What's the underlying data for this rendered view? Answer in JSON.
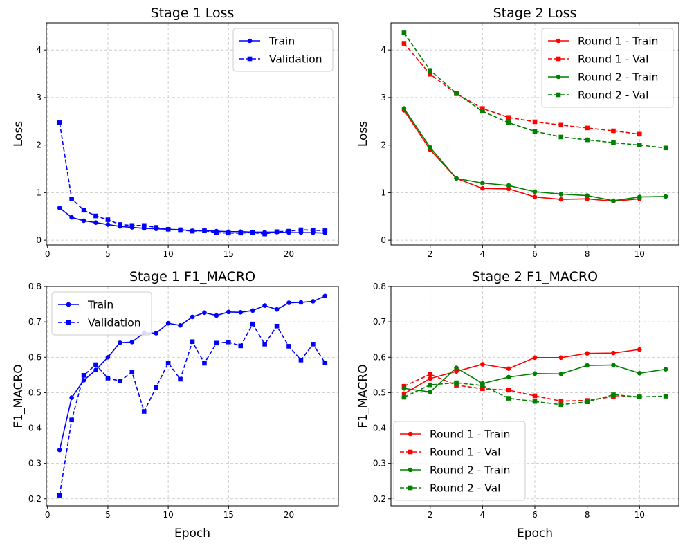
{
  "chart_data": [
    {
      "id": "stage1-loss",
      "type": "line",
      "title": "Stage 1 Loss",
      "xlabel": "",
      "ylabel": "Loss",
      "xlim": [
        -0.1,
        24.1
      ],
      "ylim": [
        -0.1,
        4.57
      ],
      "xticks": [
        0,
        5,
        10,
        15,
        20
      ],
      "yticks": [
        0,
        1,
        2,
        3,
        4
      ],
      "grid": true,
      "legend_position": "top-right",
      "series": [
        {
          "name": "Train",
          "color": "#0000ff",
          "dashed": false,
          "marker": "circle",
          "x": [
            1,
            2,
            3,
            4,
            5,
            6,
            7,
            8,
            9,
            10,
            11,
            12,
            13,
            14,
            15,
            16,
            17,
            18,
            19,
            20,
            21,
            22,
            23
          ],
          "y": [
            0.68,
            0.48,
            0.41,
            0.37,
            0.33,
            0.29,
            0.27,
            0.25,
            0.24,
            0.23,
            0.22,
            0.2,
            0.2,
            0.19,
            0.18,
            0.18,
            0.17,
            0.17,
            0.17,
            0.16,
            0.16,
            0.16,
            0.15
          ]
        },
        {
          "name": "Validation",
          "color": "#0000ff",
          "dashed": true,
          "marker": "square",
          "x": [
            1,
            2,
            3,
            4,
            5,
            6,
            7,
            8,
            9,
            10,
            11,
            12,
            13,
            14,
            15,
            16,
            17,
            18,
            19,
            20,
            21,
            22,
            23
          ],
          "y": [
            2.47,
            0.87,
            0.63,
            0.51,
            0.43,
            0.33,
            0.31,
            0.31,
            0.27,
            0.23,
            0.22,
            0.19,
            0.2,
            0.16,
            0.15,
            0.15,
            0.16,
            0.13,
            0.18,
            0.19,
            0.22,
            0.21,
            0.2
          ]
        }
      ]
    },
    {
      "id": "stage2-loss",
      "type": "line",
      "title": "Stage 2 Loss",
      "xlabel": "",
      "ylabel": "Loss",
      "xlim": [
        0.5,
        11.5
      ],
      "ylim": [
        -0.1,
        4.57
      ],
      "xticks": [
        2,
        4,
        6,
        8,
        10
      ],
      "yticks": [
        0,
        1,
        2,
        3,
        4
      ],
      "grid": true,
      "legend_position": "top-right",
      "series": [
        {
          "name": "Round 1 - Train",
          "color": "#ff0000",
          "dashed": false,
          "marker": "circle",
          "x": [
            1,
            2,
            3,
            4,
            5,
            6,
            7,
            8,
            9,
            10
          ],
          "y": [
            2.73,
            1.9,
            1.3,
            1.09,
            1.08,
            0.91,
            0.86,
            0.87,
            0.82,
            0.87
          ]
        },
        {
          "name": "Round 1 - Val",
          "color": "#ff0000",
          "dashed": true,
          "marker": "square",
          "x": [
            1,
            2,
            3,
            4,
            5,
            6,
            7,
            8,
            9,
            10
          ],
          "y": [
            4.14,
            3.49,
            3.08,
            2.77,
            2.58,
            2.49,
            2.42,
            2.36,
            2.3,
            2.23
          ]
        },
        {
          "name": "Round 2 - Train",
          "color": "#008000",
          "dashed": false,
          "marker": "circle",
          "x": [
            1,
            2,
            3,
            4,
            5,
            6,
            7,
            8,
            9,
            10,
            11
          ],
          "y": [
            2.77,
            1.95,
            1.3,
            1.2,
            1.15,
            1.02,
            0.97,
            0.94,
            0.83,
            0.91,
            0.92
          ]
        },
        {
          "name": "Round 2 - Val",
          "color": "#008000",
          "dashed": true,
          "marker": "square",
          "x": [
            1,
            2,
            3,
            4,
            5,
            6,
            7,
            8,
            9,
            10,
            11
          ],
          "y": [
            4.36,
            3.57,
            3.09,
            2.71,
            2.47,
            2.29,
            2.17,
            2.11,
            2.05,
            2.0,
            1.94
          ]
        }
      ]
    },
    {
      "id": "stage1-f1",
      "type": "line",
      "title": "Stage 1 F1_MACRO",
      "xlabel": "Epoch",
      "ylabel": "F1_MACRO",
      "xlim": [
        -0.1,
        24.1
      ],
      "ylim": [
        0.18,
        0.8
      ],
      "xticks": [
        0,
        5,
        10,
        15,
        20
      ],
      "yticks": [
        0.2,
        0.3,
        0.4,
        0.5,
        0.6,
        0.7,
        0.8
      ],
      "grid": true,
      "legend_position": "top-left",
      "series": [
        {
          "name": "Train",
          "color": "#0000ff",
          "dashed": false,
          "marker": "circle",
          "x": [
            1,
            2,
            3,
            4,
            5,
            6,
            7,
            8,
            9,
            10,
            11,
            12,
            13,
            14,
            15,
            16,
            17,
            18,
            19,
            20,
            21,
            22,
            23
          ],
          "y": [
            0.338,
            0.486,
            0.535,
            0.564,
            0.6,
            0.641,
            0.643,
            0.669,
            0.668,
            0.696,
            0.69,
            0.714,
            0.726,
            0.718,
            0.728,
            0.727,
            0.732,
            0.746,
            0.735,
            0.754,
            0.755,
            0.758,
            0.773
          ]
        },
        {
          "name": "Validation",
          "color": "#0000ff",
          "dashed": true,
          "marker": "square",
          "x": [
            1,
            2,
            3,
            4,
            5,
            6,
            7,
            8,
            9,
            10,
            11,
            12,
            13,
            14,
            15,
            16,
            17,
            18,
            19,
            20,
            21,
            22,
            23
          ],
          "y": [
            0.21,
            0.423,
            0.549,
            0.579,
            0.541,
            0.533,
            0.558,
            0.447,
            0.515,
            0.584,
            0.538,
            0.644,
            0.583,
            0.64,
            0.643,
            0.632,
            0.694,
            0.637,
            0.688,
            0.631,
            0.592,
            0.637,
            0.584
          ]
        }
      ]
    },
    {
      "id": "stage2-f1",
      "type": "line",
      "title": "Stage 2 F1_MACRO",
      "xlabel": "Epoch",
      "ylabel": "F1_MACRO",
      "xlim": [
        0.5,
        11.5
      ],
      "ylim": [
        0.18,
        0.8
      ],
      "xticks": [
        2,
        4,
        6,
        8,
        10
      ],
      "yticks": [
        0.2,
        0.3,
        0.4,
        0.5,
        0.6,
        0.7,
        0.8
      ],
      "grid": true,
      "legend_position": "bottom-left",
      "series": [
        {
          "name": "Round 1 - Train",
          "color": "#ff0000",
          "dashed": false,
          "marker": "circle",
          "x": [
            1,
            2,
            3,
            4,
            5,
            6,
            7,
            8,
            9,
            10
          ],
          "y": [
            0.497,
            0.54,
            0.56,
            0.58,
            0.568,
            0.599,
            0.599,
            0.611,
            0.612,
            0.622
          ]
        },
        {
          "name": "Round 1 - Val",
          "color": "#ff0000",
          "dashed": true,
          "marker": "square",
          "x": [
            1,
            2,
            3,
            4,
            5,
            6,
            7,
            8,
            9,
            10
          ],
          "y": [
            0.518,
            0.552,
            0.521,
            0.511,
            0.507,
            0.491,
            0.476,
            0.478,
            0.489,
            0.488
          ]
        },
        {
          "name": "Round 2 - Train",
          "color": "#008000",
          "dashed": false,
          "marker": "circle",
          "x": [
            1,
            2,
            3,
            4,
            5,
            6,
            7,
            8,
            9,
            10,
            11
          ],
          "y": [
            0.512,
            0.502,
            0.57,
            0.526,
            0.544,
            0.554,
            0.553,
            0.577,
            0.578,
            0.555,
            0.566
          ]
        },
        {
          "name": "Round 2 - Val",
          "color": "#008000",
          "dashed": true,
          "marker": "square",
          "x": [
            1,
            2,
            3,
            4,
            5,
            6,
            7,
            8,
            9,
            10,
            11
          ],
          "y": [
            0.487,
            0.522,
            0.528,
            0.52,
            0.484,
            0.475,
            0.466,
            0.474,
            0.494,
            0.488,
            0.49
          ]
        }
      ]
    }
  ]
}
